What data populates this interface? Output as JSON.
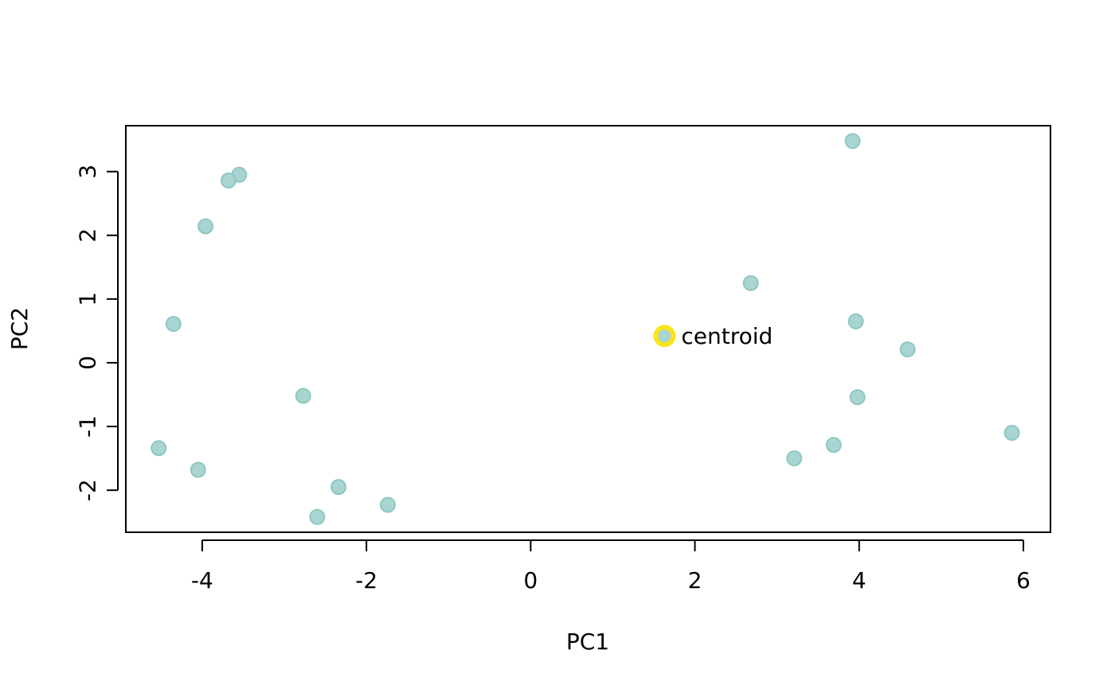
{
  "chart_data": {
    "type": "scatter",
    "title": "",
    "xlabel": "PC1",
    "ylabel": "PC2",
    "xlim": [
      -4.93,
      6.33
    ],
    "ylim": [
      -2.66,
      3.72
    ],
    "xticks": [
      -4,
      -2,
      0,
      2,
      4,
      6
    ],
    "yticks": [
      -2,
      -1,
      0,
      1,
      2,
      3
    ],
    "grid": false,
    "legend": "none",
    "point_color": "#a8d5d1",
    "point_edge_color": "#8fc7c2",
    "series": [
      {
        "x": [
          3.92,
          -3.55,
          -3.68,
          -3.96,
          2.68,
          -4.35,
          3.96,
          4.59,
          -2.77,
          3.98,
          5.86,
          3.69,
          -4.53,
          3.21,
          -4.05,
          -2.34,
          -1.74,
          -2.6
        ],
        "y": [
          3.48,
          2.95,
          2.86,
          2.14,
          1.25,
          0.61,
          0.65,
          0.21,
          -0.52,
          -0.54,
          -1.1,
          -1.29,
          -1.34,
          -1.5,
          -1.68,
          -1.95,
          -2.23,
          -2.42
        ]
      }
    ],
    "annotations": [
      {
        "label": "centroid",
        "x": 1.63,
        "y": 0.42,
        "highlight_color": "#f9e31a"
      }
    ]
  }
}
